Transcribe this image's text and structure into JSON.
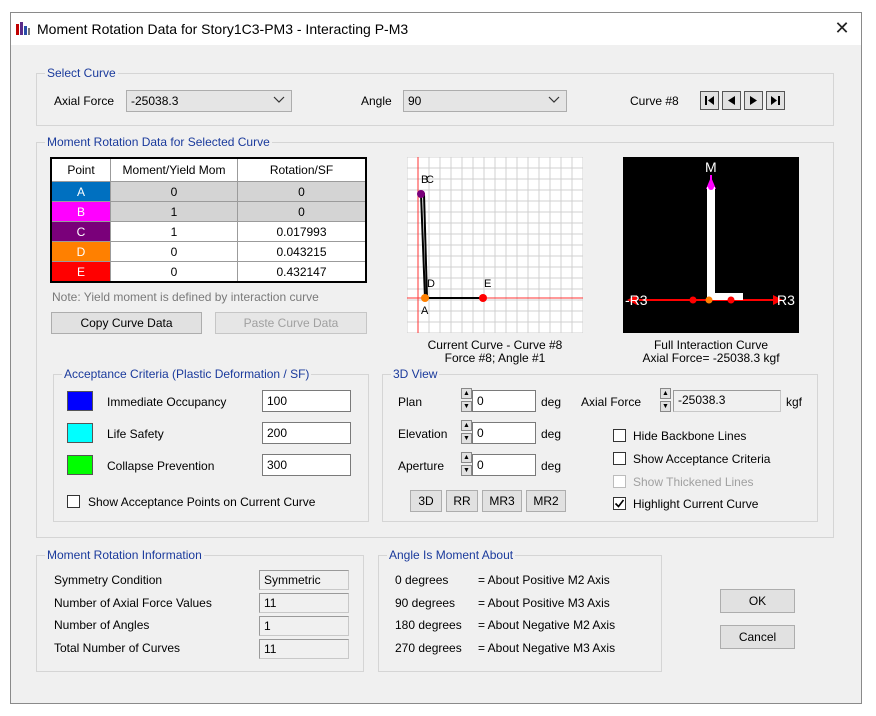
{
  "window": {
    "title": "Moment Rotation Data for Story1C3-PM3 - Interacting P-M3",
    "close_glyph": "✕"
  },
  "select_curve": {
    "group_label": "Select Curve",
    "axial_force_label": "Axial Force",
    "axial_force_value": "-25038.3",
    "angle_label": "Angle",
    "angle_value": "90",
    "curve_label": "Curve #8"
  },
  "moment_rotation": {
    "group_label": "Moment Rotation Data for Selected Curve",
    "columns": [
      "Point",
      "Moment/Yield Mom",
      "Rotation/SF"
    ],
    "rows": [
      {
        "point": "A",
        "moment": "0",
        "rotation": "0",
        "color": "#0070c0"
      },
      {
        "point": "B",
        "moment": "1",
        "rotation": "0",
        "color": "#ff00ff"
      },
      {
        "point": "C",
        "moment": "1",
        "rotation": "0.017993",
        "color": "#7a007a"
      },
      {
        "point": "D",
        "moment": "0",
        "rotation": "0.043215",
        "color": "#ff8000"
      },
      {
        "point": "E",
        "moment": "0",
        "rotation": "0.432147",
        "color": "#ff0000"
      }
    ],
    "note": "Note:  Yield moment is defined by interaction curve",
    "copy_button": "Copy Curve Data",
    "paste_button": "Paste Curve Data"
  },
  "current_curve_plot": {
    "caption_line1": "Current Curve - Curve #8",
    "caption_line2": "Force #8;  Angle #1",
    "labels": {
      "a": "A",
      "b": "B",
      "c": "C",
      "d": "D",
      "e": "E"
    }
  },
  "interaction_plot": {
    "caption_line1": "Full Interaction Curve",
    "caption_line2": "Axial Force= -25038.3  kgf",
    "axis_top": "M",
    "axis_left": "-R3",
    "axis_right": "R3"
  },
  "acceptance": {
    "group_label": "Acceptance Criteria (Plastic Deformation / SF)",
    "items": [
      {
        "label": "Immediate Occupancy",
        "value": "100",
        "color": "#0000ff"
      },
      {
        "label": "Life Safety",
        "value": "200",
        "color": "#00ffff"
      },
      {
        "label": "Collapse Prevention",
        "value": "300",
        "color": "#00ff00"
      }
    ],
    "show_points_label": "Show Acceptance Points on Current Curve"
  },
  "view3d": {
    "group_label": "3D View",
    "plan_label": "Plan",
    "plan_value": "0",
    "elevation_label": "Elevation",
    "elevation_value": "0",
    "aperture_label": "Aperture",
    "aperture_value": "0",
    "deg_unit": "deg",
    "axial_force_label": "Axial Force",
    "axial_force_value": "-25038.3",
    "axial_force_unit": "kgf",
    "hide_backbone": "Hide Backbone Lines",
    "show_acceptance": "Show Acceptance Criteria",
    "show_thickened": "Show Thickened Lines",
    "highlight_current": "Highlight Current Curve",
    "buttons": [
      "3D",
      "RR",
      "MR3",
      "MR2"
    ]
  },
  "info": {
    "group_label": "Moment Rotation Information",
    "symmetry_label": "Symmetry Condition",
    "symmetry_value": "Symmetric",
    "axial_count_label": "Number of Axial Force Values",
    "axial_count_value": "11",
    "angles_label": "Number of Angles",
    "angles_value": "1",
    "curves_label": "Total Number of Curves",
    "curves_value": "11"
  },
  "angle_about": {
    "group_label": "Angle Is Moment About",
    "rows": [
      {
        "deg": "0 degrees",
        "desc": "= About Positive M2 Axis"
      },
      {
        "deg": "90 degrees",
        "desc": "= About Positive M3 Axis"
      },
      {
        "deg": "180 degrees",
        "desc": "= About Negative M2 Axis"
      },
      {
        "deg": "270 degrees",
        "desc": "= About Negative M3 Axis"
      }
    ]
  },
  "dialog_buttons": {
    "ok": "OK",
    "cancel": "Cancel"
  }
}
